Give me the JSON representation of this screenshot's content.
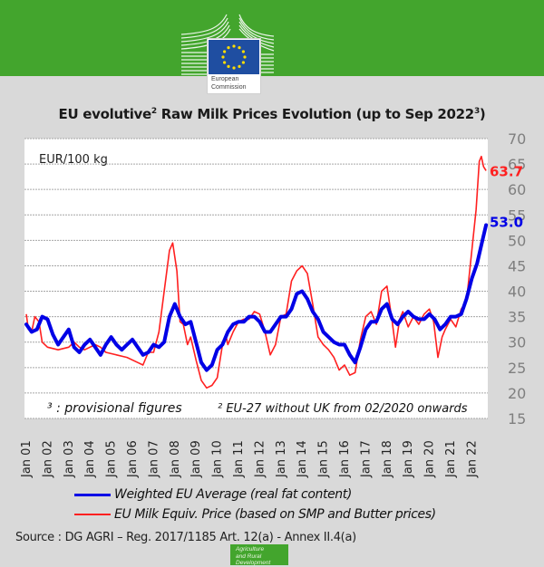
{
  "header": {
    "logo_text_line1": "European",
    "logo_text_line2": "Commission",
    "brand_color": "#43a52d",
    "flag_color": "#1f4ea1"
  },
  "title": {
    "main_a": "EU evolutive",
    "sup_a": "2",
    "main_b": " Raw Milk Prices Evolution (up to Sep 2022",
    "sup_b": "3",
    "main_c": ")"
  },
  "legend": {
    "blue_label": "Weighted EU Average (real fat content)",
    "red_label": "EU Milk Equiv. Price (based on SMP and Butter prices)"
  },
  "footer": {
    "source": "Source : DG AGRI – Reg. 2017/1185 Art. 12(a) - Annex II.4(a)",
    "badge_line1": "Agriculture",
    "badge_line2": "and Rural",
    "badge_line3": "Development"
  },
  "chart_data": {
    "type": "line",
    "title": "EU evolutive² Raw Milk Prices Evolution (up to Sep 2022³)",
    "unit_label": "EUR/100 kg",
    "xlabel": "",
    "ylabel": "EUR/100 kg",
    "ylim": [
      15,
      70
    ],
    "yticks": [
      70,
      65,
      60,
      55,
      50,
      45,
      40,
      35,
      30,
      25,
      20,
      15
    ],
    "xlim": [
      2001.0,
      2022.75
    ],
    "xtick_labels": [
      "Jan 01",
      "Jan 02",
      "Jan 03",
      "Jan 04",
      "Jan 05",
      "Jan 06",
      "Jan 07",
      "Jan 08",
      "Jan 09",
      "Jan 10",
      "Jan 11",
      "Jan 12",
      "Jan 13",
      "Jan 14",
      "Jan 15",
      "Jan 16",
      "Jan 17",
      "Jan 18",
      "Jan 19",
      "Jan 20",
      "Jan 21",
      "Jan 22"
    ],
    "grid": true,
    "legend_position": "bottom",
    "notes": {
      "note_provisional": "³ : provisional figures",
      "note_eu27": "² EU-27 without UK from 02/2020 onwards"
    },
    "series": [
      {
        "name": "Weighted EU Average (real fat content)",
        "color": "#0000e6",
        "last_value_label": "53.0",
        "x": [
          2001.0,
          2001.25,
          2001.5,
          2001.75,
          2002.0,
          2002.25,
          2002.5,
          2002.75,
          2003.0,
          2003.25,
          2003.5,
          2003.75,
          2004.0,
          2004.25,
          2004.5,
          2004.75,
          2005.0,
          2005.25,
          2005.5,
          2005.75,
          2006.0,
          2006.25,
          2006.5,
          2006.75,
          2007.0,
          2007.25,
          2007.5,
          2007.75,
          2008.0,
          2008.25,
          2008.5,
          2008.75,
          2009.0,
          2009.25,
          2009.5,
          2009.75,
          2010.0,
          2010.25,
          2010.5,
          2010.75,
          2011.0,
          2011.25,
          2011.5,
          2011.75,
          2012.0,
          2012.25,
          2012.5,
          2012.75,
          2013.0,
          2013.25,
          2013.5,
          2013.75,
          2014.0,
          2014.25,
          2014.5,
          2014.75,
          2015.0,
          2015.25,
          2015.5,
          2015.75,
          2016.0,
          2016.25,
          2016.5,
          2016.75,
          2017.0,
          2017.25,
          2017.5,
          2017.75,
          2018.0,
          2018.25,
          2018.5,
          2018.75,
          2019.0,
          2019.25,
          2019.5,
          2019.75,
          2020.0,
          2020.25,
          2020.5,
          2020.75,
          2021.0,
          2021.25,
          2021.5,
          2021.75,
          2022.0,
          2022.25,
          2022.5,
          2022.67
        ],
        "values": [
          33.5,
          32,
          32.5,
          35,
          34.5,
          31.5,
          29.5,
          31,
          32.5,
          29,
          28,
          29.5,
          30.5,
          29,
          27.5,
          29.5,
          31,
          29.5,
          28.5,
          29.5,
          30.5,
          29,
          27.5,
          28,
          29.5,
          29,
          30,
          35,
          37.5,
          35,
          33.5,
          34,
          30,
          26,
          24.5,
          25.5,
          28.5,
          29.5,
          32,
          33.5,
          34,
          34,
          35,
          35,
          34,
          32,
          32,
          33.5,
          35,
          35,
          36.5,
          39.5,
          40,
          38.5,
          36,
          34.5,
          32,
          31,
          30,
          29.5,
          29.5,
          27.5,
          26,
          29,
          32.5,
          34,
          34,
          36.5,
          37.5,
          34.5,
          33.5,
          35,
          36,
          35,
          34.5,
          34.5,
          35.5,
          34.5,
          32.5,
          33.5,
          35,
          35,
          35.5,
          38.5,
          42.5,
          45.5,
          50,
          53.0
        ]
      },
      {
        "name": "EU Milk Equiv. Price (based on SMP and Butter prices)",
        "color": "#ff2020",
        "last_value_label": "63.7",
        "x": [
          2001.0,
          2001.1,
          2001.25,
          2001.4,
          2001.6,
          2001.75,
          2002.0,
          2002.5,
          2003.0,
          2003.25,
          2003.5,
          2003.75,
          2004.25,
          2004.5,
          2004.75,
          2005.25,
          2005.75,
          2006.25,
          2006.5,
          2006.75,
          2007.0,
          2007.25,
          2007.5,
          2007.75,
          2007.9,
          2008.1,
          2008.25,
          2008.4,
          2008.6,
          2008.75,
          2009.0,
          2009.25,
          2009.5,
          2009.75,
          2010.0,
          2010.25,
          2010.4,
          2010.5,
          2010.75,
          2011.0,
          2011.25,
          2011.5,
          2011.75,
          2012.0,
          2012.25,
          2012.5,
          2012.75,
          2013.0,
          2013.25,
          2013.5,
          2013.75,
          2014.0,
          2014.25,
          2014.5,
          2014.75,
          2015.0,
          2015.25,
          2015.5,
          2015.75,
          2016.0,
          2016.25,
          2016.5,
          2016.75,
          2017.0,
          2017.25,
          2017.5,
          2017.75,
          2018.0,
          2018.25,
          2018.4,
          2018.6,
          2018.75,
          2019.0,
          2019.25,
          2019.5,
          2019.75,
          2020.0,
          2020.2,
          2020.4,
          2020.6,
          2020.75,
          2021.0,
          2021.25,
          2021.5,
          2021.75,
          2022.0,
          2022.2,
          2022.35,
          2022.45,
          2022.55,
          2022.67
        ],
        "values": [
          35.5,
          32.5,
          32,
          35,
          34,
          30,
          29,
          28.5,
          29,
          30,
          29,
          28.5,
          29.5,
          29,
          28,
          27.5,
          27,
          26,
          25.5,
          28,
          28,
          32,
          40,
          48,
          49.5,
          44,
          34,
          33.5,
          29.5,
          31,
          26.5,
          22.5,
          21,
          21.5,
          23,
          29.5,
          31.5,
          29.5,
          32,
          34,
          34.5,
          34.5,
          36,
          35.5,
          32,
          27.5,
          29.5,
          35,
          35.5,
          42,
          44,
          45,
          43.5,
          37.5,
          31,
          29.5,
          28.5,
          27,
          24.5,
          25.5,
          23.5,
          24,
          30.5,
          35,
          36,
          33.5,
          40,
          41,
          34,
          29,
          34.5,
          36,
          33,
          35,
          33.5,
          35.5,
          36.5,
          34,
          27,
          31,
          32.5,
          34.5,
          33,
          36.5,
          38,
          48,
          56,
          65.5,
          66.5,
          64.5,
          63.7
        ]
      }
    ]
  }
}
